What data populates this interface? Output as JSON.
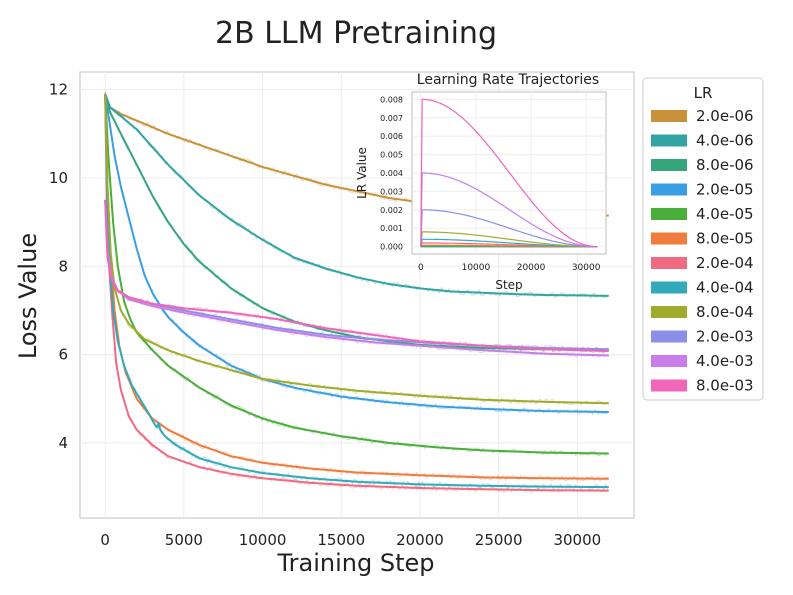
{
  "chart_data": [
    {
      "type": "line",
      "title": "2B LLM Pretraining",
      "xlabel": "Training Step",
      "ylabel": "Loss Value",
      "xlim": [
        -1600,
        33600
      ],
      "ylim": [
        2.3,
        12.4
      ],
      "xticks": [
        0,
        5000,
        10000,
        15000,
        20000,
        25000,
        30000
      ],
      "yticks": [
        4,
        6,
        8,
        10,
        12
      ],
      "grid": true,
      "legend": {
        "title": "LR",
        "placement": "outside-right"
      },
      "series": [
        {
          "name": "2.0e-06",
          "color": "#c8923a",
          "points": [
            [
              0,
              11.9
            ],
            [
              300,
              11.6
            ],
            [
              1000,
              11.45
            ],
            [
              2000,
              11.3
            ],
            [
              4000,
              11.0
            ],
            [
              6000,
              10.75
            ],
            [
              8000,
              10.5
            ],
            [
              10000,
              10.25
            ],
            [
              12000,
              10.05
            ],
            [
              14000,
              9.85
            ],
            [
              16000,
              9.7
            ],
            [
              18000,
              9.55
            ],
            [
              20000,
              9.45
            ],
            [
              22000,
              9.38
            ],
            [
              24000,
              9.3
            ],
            [
              26000,
              9.25
            ],
            [
              28000,
              9.2
            ],
            [
              30000,
              9.17
            ],
            [
              32000,
              9.15
            ]
          ]
        },
        {
          "name": "4.0e-06",
          "color": "#33a3a3",
          "points": [
            [
              0,
              11.9
            ],
            [
              300,
              11.6
            ],
            [
              1000,
              11.4
            ],
            [
              2000,
              11.1
            ],
            [
              4000,
              10.3
            ],
            [
              6000,
              9.6
            ],
            [
              8000,
              9.05
            ],
            [
              10000,
              8.6
            ],
            [
              12000,
              8.2
            ],
            [
              14000,
              7.95
            ],
            [
              16000,
              7.75
            ],
            [
              18000,
              7.6
            ],
            [
              20000,
              7.5
            ],
            [
              22000,
              7.43
            ],
            [
              24000,
              7.4
            ],
            [
              26000,
              7.37
            ],
            [
              28000,
              7.35
            ],
            [
              30000,
              7.34
            ],
            [
              32000,
              7.33
            ]
          ]
        },
        {
          "name": "8.0e-06",
          "color": "#34a57d",
          "points": [
            [
              0,
              11.9
            ],
            [
              300,
              11.5
            ],
            [
              1000,
              11.0
            ],
            [
              2000,
              10.3
            ],
            [
              3000,
              9.6
            ],
            [
              4000,
              9.0
            ],
            [
              5000,
              8.5
            ],
            [
              6000,
              8.1
            ],
            [
              8000,
              7.5
            ],
            [
              10000,
              7.05
            ],
            [
              12000,
              6.75
            ],
            [
              14000,
              6.55
            ],
            [
              16000,
              6.4
            ],
            [
              18000,
              6.3
            ],
            [
              20000,
              6.22
            ],
            [
              24000,
              6.15
            ],
            [
              28000,
              6.12
            ],
            [
              32000,
              6.1
            ]
          ]
        },
        {
          "name": "2.0e-05",
          "color": "#3a9ee2",
          "points": [
            [
              0,
              11.9
            ],
            [
              300,
              11.2
            ],
            [
              600,
              10.5
            ],
            [
              1000,
              9.8
            ],
            [
              1500,
              9.1
            ],
            [
              2000,
              8.4
            ],
            [
              2500,
              7.8
            ],
            [
              3000,
              7.4
            ],
            [
              3500,
              7.1
            ],
            [
              4000,
              6.85
            ],
            [
              5000,
              6.5
            ],
            [
              6000,
              6.2
            ],
            [
              8000,
              5.75
            ],
            [
              10000,
              5.45
            ],
            [
              12000,
              5.25
            ],
            [
              15000,
              5.05
            ],
            [
              18000,
              4.92
            ],
            [
              21000,
              4.83
            ],
            [
              24000,
              4.77
            ],
            [
              28000,
              4.72
            ],
            [
              32000,
              4.7
            ]
          ]
        },
        {
          "name": "4.0e-05",
          "color": "#4aae3a",
          "points": [
            [
              0,
              11.9
            ],
            [
              200,
              10.5
            ],
            [
              500,
              9.0
            ],
            [
              800,
              8.0
            ],
            [
              1200,
              7.2
            ],
            [
              1600,
              6.8
            ],
            [
              2000,
              6.5
            ],
            [
              3000,
              6.1
            ],
            [
              4000,
              5.75
            ],
            [
              6000,
              5.25
            ],
            [
              8000,
              4.85
            ],
            [
              10000,
              4.55
            ],
            [
              12000,
              4.35
            ],
            [
              15000,
              4.15
            ],
            [
              18000,
              4.0
            ],
            [
              21000,
              3.9
            ],
            [
              24000,
              3.83
            ],
            [
              28000,
              3.78
            ],
            [
              32000,
              3.76
            ]
          ]
        },
        {
          "name": "8.0e-05",
          "color": "#ef7c3c",
          "points": [
            [
              0,
              11.9
            ],
            [
              150,
              9.8
            ],
            [
              350,
              8.2
            ],
            [
              600,
              7.0
            ],
            [
              900,
              6.2
            ],
            [
              1300,
              5.6
            ],
            [
              2000,
              5.0
            ],
            [
              3000,
              4.55
            ],
            [
              4000,
              4.3
            ],
            [
              6000,
              3.95
            ],
            [
              8000,
              3.7
            ],
            [
              10000,
              3.55
            ],
            [
              13000,
              3.42
            ],
            [
              16000,
              3.33
            ],
            [
              20000,
              3.27
            ],
            [
              24000,
              3.22
            ],
            [
              28000,
              3.2
            ],
            [
              32000,
              3.19
            ]
          ]
        },
        {
          "name": "2.0e-04",
          "color": "#f06a82",
          "points": [
            [
              0,
              11.9
            ],
            [
              100,
              9.6
            ],
            [
              250,
              8.0
            ],
            [
              450,
              6.9
            ],
            [
              700,
              5.8
            ],
            [
              1000,
              5.2
            ],
            [
              1500,
              4.6
            ],
            [
              2000,
              4.3
            ],
            [
              3000,
              3.95
            ],
            [
              4000,
              3.7
            ],
            [
              6000,
              3.45
            ],
            [
              8000,
              3.3
            ],
            [
              10000,
              3.2
            ],
            [
              13000,
              3.1
            ],
            [
              16000,
              3.03
            ],
            [
              20000,
              2.98
            ],
            [
              24000,
              2.95
            ],
            [
              28000,
              2.93
            ],
            [
              32000,
              2.92
            ]
          ]
        },
        {
          "name": "4.0e-04",
          "color": "#32aabb",
          "points": [
            [
              0,
              11.9
            ],
            [
              120,
              9.6
            ],
            [
              300,
              8.0
            ],
            [
              500,
              7.0
            ],
            [
              800,
              6.3
            ],
            [
              1200,
              5.75
            ],
            [
              1700,
              5.3
            ],
            [
              2200,
              5.0
            ],
            [
              2700,
              4.7
            ],
            [
              3100,
              4.45
            ],
            [
              3300,
              4.35
            ],
            [
              3400,
              4.45
            ],
            [
              3500,
              4.3
            ],
            [
              3800,
              4.15
            ],
            [
              4500,
              3.95
            ],
            [
              6000,
              3.65
            ],
            [
              8000,
              3.45
            ],
            [
              10000,
              3.32
            ],
            [
              13000,
              3.2
            ],
            [
              16000,
              3.12
            ],
            [
              20000,
              3.06
            ],
            [
              24000,
              3.03
            ],
            [
              28000,
              3.01
            ],
            [
              32000,
              3.0
            ]
          ]
        },
        {
          "name": "8.0e-04",
          "color": "#a0ab2e",
          "points": [
            [
              0,
              11.9
            ],
            [
              150,
              9.8
            ],
            [
              350,
              8.3
            ],
            [
              600,
              7.5
            ],
            [
              1000,
              7.0
            ],
            [
              1500,
              6.7
            ],
            [
              2500,
              6.35
            ],
            [
              4000,
              6.1
            ],
            [
              6000,
              5.85
            ],
            [
              8000,
              5.65
            ],
            [
              10000,
              5.45
            ],
            [
              13000,
              5.3
            ],
            [
              16000,
              5.18
            ],
            [
              20000,
              5.07
            ],
            [
              24000,
              4.98
            ],
            [
              28000,
              4.93
            ],
            [
              32000,
              4.9
            ]
          ]
        },
        {
          "name": "2.0e-03",
          "color": "#8b8fe8",
          "points": [
            [
              0,
              9.5
            ],
            [
              150,
              8.4
            ],
            [
              400,
              7.75
            ],
            [
              800,
              7.45
            ],
            [
              1500,
              7.3
            ],
            [
              3000,
              7.15
            ],
            [
              5000,
              7.0
            ],
            [
              8000,
              6.8
            ],
            [
              11000,
              6.6
            ],
            [
              14000,
              6.45
            ],
            [
              17000,
              6.35
            ],
            [
              20000,
              6.28
            ],
            [
              24000,
              6.2
            ],
            [
              28000,
              6.15
            ],
            [
              32000,
              6.12
            ]
          ]
        },
        {
          "name": "4.0e-03",
          "color": "#c77ee8",
          "points": [
            [
              0,
              9.5
            ],
            [
              150,
              8.3
            ],
            [
              400,
              7.75
            ],
            [
              800,
              7.45
            ],
            [
              1500,
              7.25
            ],
            [
              3000,
              7.1
            ],
            [
              5000,
              6.95
            ],
            [
              8000,
              6.75
            ],
            [
              11000,
              6.55
            ],
            [
              14000,
              6.4
            ],
            [
              17000,
              6.28
            ],
            [
              20000,
              6.2
            ],
            [
              24000,
              6.1
            ],
            [
              28000,
              6.02
            ],
            [
              32000,
              5.98
            ]
          ]
        },
        {
          "name": "8.0e-03",
          "color": "#f066b8",
          "points": [
            [
              0,
              9.5
            ],
            [
              150,
              8.2
            ],
            [
              400,
              7.7
            ],
            [
              800,
              7.45
            ],
            [
              1500,
              7.3
            ],
            [
              3000,
              7.15
            ],
            [
              5000,
              7.05
            ],
            [
              8000,
              6.95
            ],
            [
              11000,
              6.8
            ],
            [
              14000,
              6.6
            ],
            [
              17000,
              6.45
            ],
            [
              20000,
              6.3
            ],
            [
              24000,
              6.2
            ],
            [
              28000,
              6.12
            ],
            [
              32000,
              6.08
            ]
          ]
        }
      ]
    },
    {
      "type": "line",
      "title": "Learning Rate Trajectories",
      "xlabel": "Step",
      "ylabel": "LR Value",
      "xlim": [
        -1600,
        33600
      ],
      "ylim": [
        -0.0004,
        0.0084
      ],
      "xticks": [
        0,
        10000,
        20000,
        30000
      ],
      "yticks": [
        0.0,
        0.001,
        0.002,
        0.003,
        0.004,
        0.005,
        0.006,
        0.007,
        0.008
      ],
      "ytick_labels": [
        "0.000",
        "0.001",
        "0.002",
        "0.003",
        "0.004",
        "0.005",
        "0.006",
        "0.007",
        "0.008"
      ],
      "schedule": "cosine decay to 0 at step 32000 after warmup of 200 steps",
      "peak_lrs": [
        2e-06,
        4e-06,
        8e-06,
        2e-05,
        4e-05,
        8e-05,
        0.0002,
        0.0004,
        0.0008,
        0.002,
        0.004,
        0.008
      ],
      "colors": [
        "#c8923a",
        "#33a3a3",
        "#34a57d",
        "#3a9ee2",
        "#4aae3a",
        "#ef7c3c",
        "#f06a82",
        "#32aabb",
        "#a0ab2e",
        "#8b8fe8",
        "#c77ee8",
        "#f066b8"
      ]
    }
  ]
}
